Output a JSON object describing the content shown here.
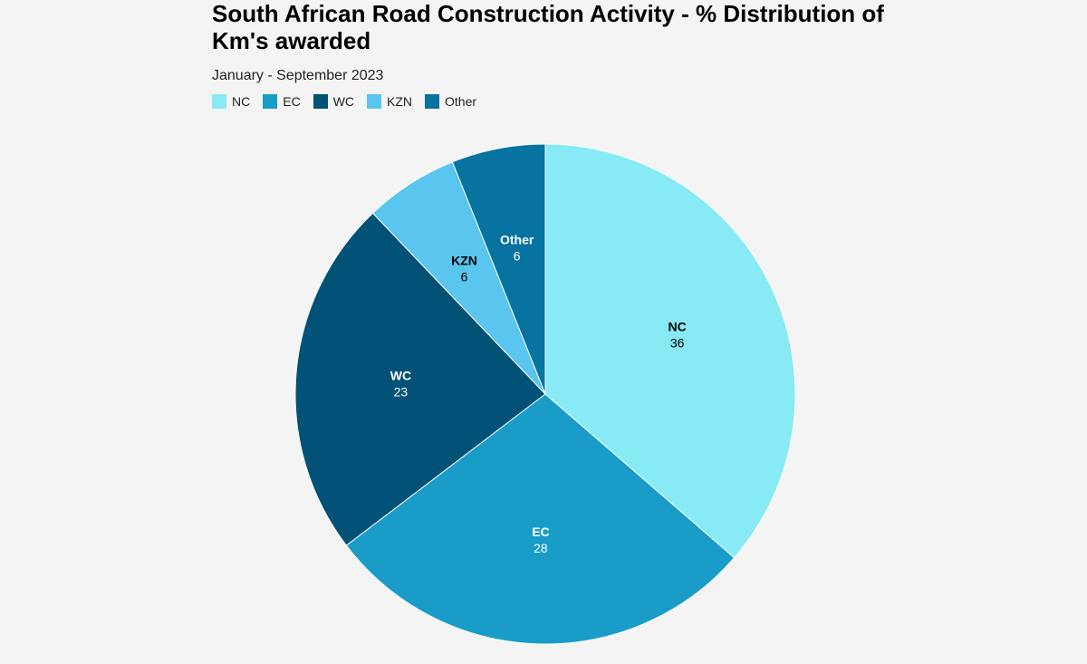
{
  "title": "South African Road Construction Activity - % Distribution of Km's awarded",
  "subtitle": "January - September 2023",
  "chart_data": {
    "type": "pie",
    "title": "South African Road Construction Activity - % Distribution of Km's awarded",
    "subtitle": "January - September 2023",
    "legend_position": "top-left",
    "slices": [
      {
        "label": "NC",
        "value": 36,
        "color": "#87eaf4",
        "text_color": "#000000"
      },
      {
        "label": "EC",
        "value": 28,
        "color": "#199cc8",
        "text_color": "#ffffff"
      },
      {
        "label": "WC",
        "value": 23,
        "color": "#025277",
        "text_color": "#ffffff"
      },
      {
        "label": "KZN",
        "value": 6,
        "color": "#5ac5ee",
        "text_color": "#000000"
      },
      {
        "label": "Other",
        "value": 6,
        "color": "#0773a1",
        "text_color": "#ffffff"
      }
    ]
  }
}
